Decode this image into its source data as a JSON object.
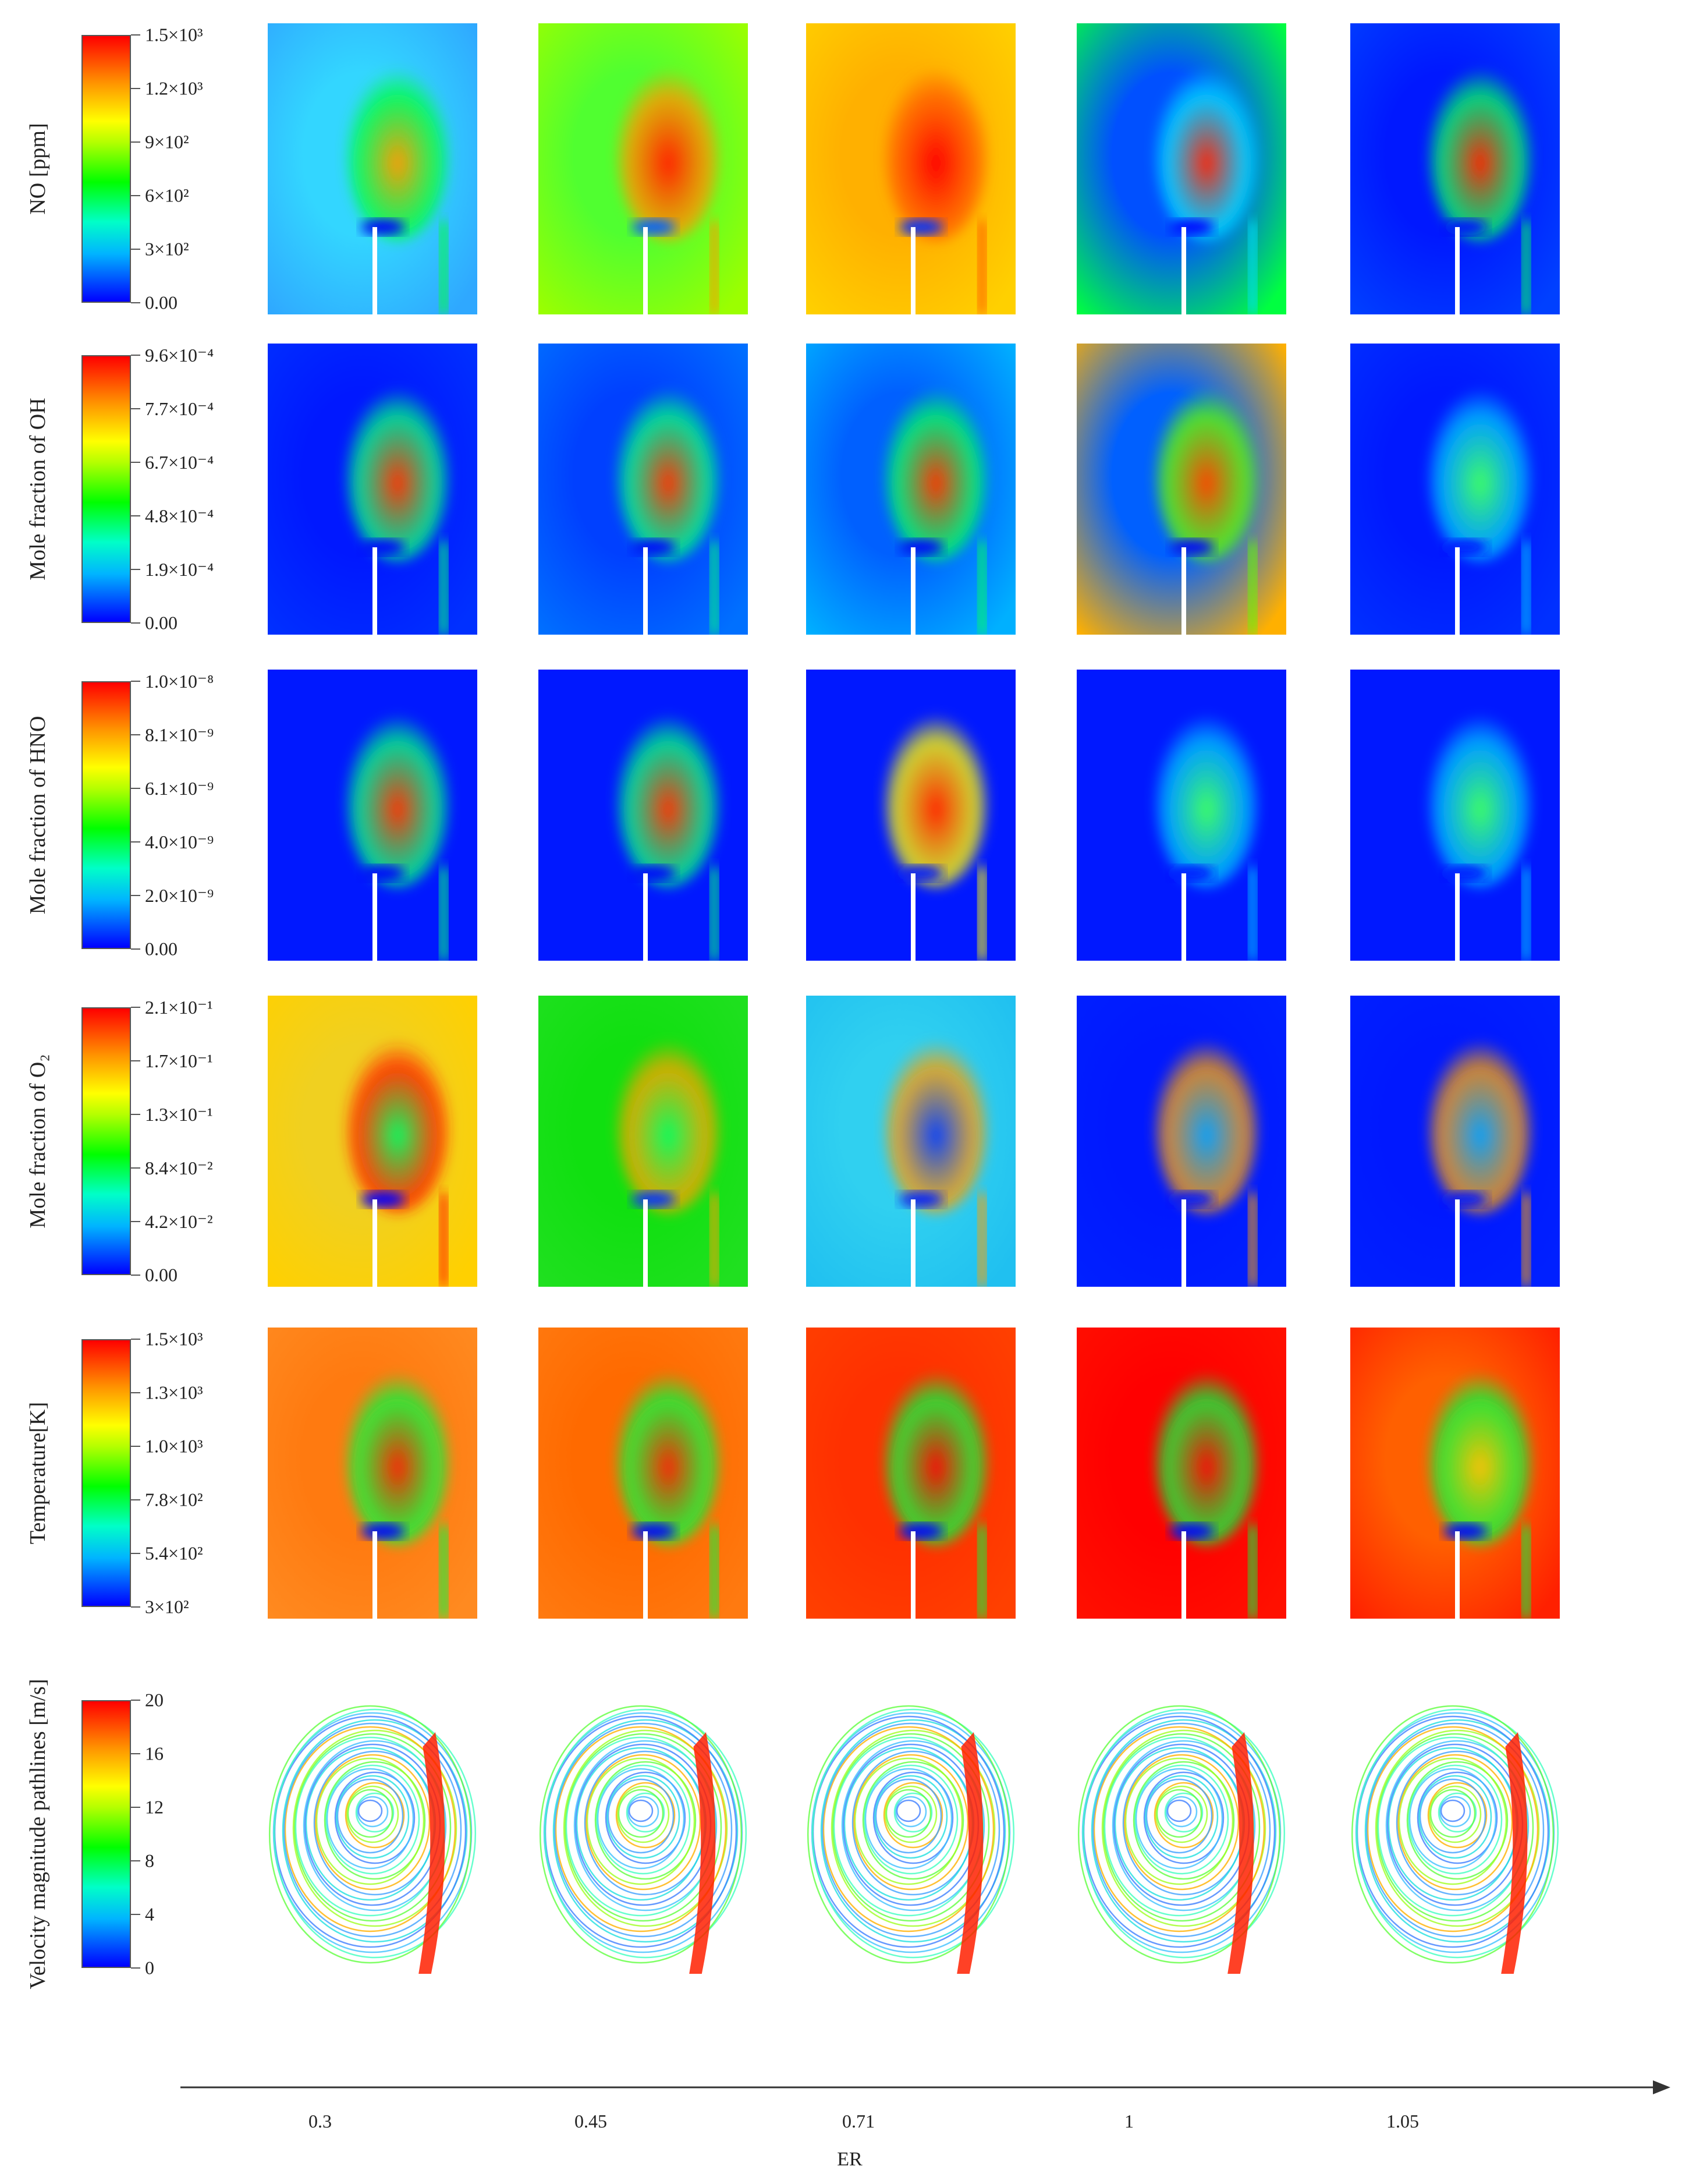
{
  "rows": [
    {
      "id": "no",
      "label": "NO [ppm]",
      "ticks": [
        "1.5×10³",
        "1.2×10³",
        "9×10²",
        "6×10²",
        "3×10²",
        "0.00"
      ]
    },
    {
      "id": "oh",
      "label": "Mole fraction of OH",
      "ticks": [
        "9.6×10⁻⁴",
        "7.7×10⁻⁴",
        "6.7×10⁻⁴",
        "4.8×10⁻⁴",
        "1.9×10⁻⁴",
        "0.00"
      ]
    },
    {
      "id": "hno",
      "label": "Mole fraction of  HNO",
      "ticks": [
        "1.0×10⁻⁸",
        "8.1×10⁻⁹",
        "6.1×10⁻⁹",
        "4.0×10⁻⁹",
        "2.0×10⁻⁹",
        "0.00"
      ]
    },
    {
      "id": "o2",
      "label": "Mole fraction of  O₂",
      "ticks": [
        "2.1×10⁻¹",
        "1.7×10⁻¹",
        "1.3×10⁻¹",
        "8.4×10⁻²",
        "4.2×10⁻²",
        "0.00"
      ]
    },
    {
      "id": "temp",
      "label": "Temperature[K]",
      "ticks": [
        "1.5×10³",
        "1.3×10³",
        "1.0×10³",
        "7.8×10²",
        "5.4×10²",
        "3×10²"
      ]
    },
    {
      "id": "vel",
      "label": "Velocity magnitude pathlines  [m/s]",
      "ticks": [
        "20",
        "16",
        "12",
        "8",
        "4",
        "0"
      ]
    }
  ],
  "er_values": [
    "0.3",
    "0.45",
    "0.71",
    "1",
    "1.05"
  ],
  "axis_title": "ER",
  "colors": {
    "low": "#0000ff",
    "cyan": "#00c8ff",
    "green": "#00ff00",
    "yellow": "#ffff00",
    "orange": "#ff9600",
    "high": "#ff0000"
  }
}
